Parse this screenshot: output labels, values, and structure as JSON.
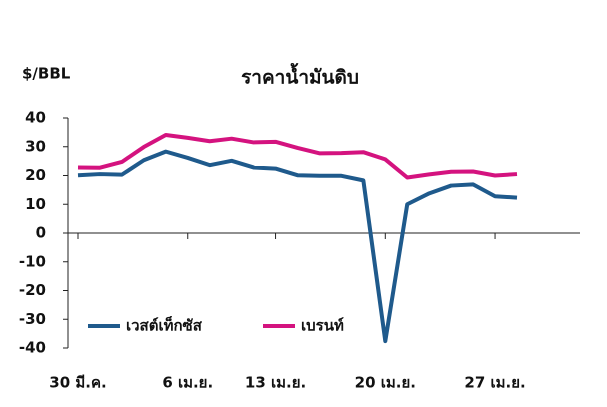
{
  "chart_data": {
    "type": "line",
    "title": "ราคาน้ำมันดิบ",
    "y_label": "$/BBL",
    "categories": [
      "30 มี.ค.",
      null,
      null,
      null,
      null,
      "6 เม.ย.",
      null,
      null,
      null,
      "13 เม.ย.",
      null,
      null,
      null,
      null,
      "20 เม.ย.",
      null,
      null,
      null,
      null,
      "27 เม.ย.",
      null
    ],
    "series": [
      {
        "name": "เวสต์เท็กซัส",
        "color": "#1f5a8c",
        "values": [
          20.1,
          20.5,
          20.3,
          25.3,
          28.3,
          26.1,
          23.6,
          25.1,
          22.8,
          22.4,
          20.1,
          19.9,
          19.9,
          18.3,
          -37.6,
          10.0,
          13.8,
          16.5,
          16.9,
          12.8,
          12.3
        ]
      },
      {
        "name": "เบรนท์",
        "color": "#d4137f",
        "values": [
          22.8,
          22.7,
          24.7,
          29.9,
          34.1,
          33.1,
          31.9,
          32.8,
          31.5,
          31.7,
          29.6,
          27.7,
          27.8,
          28.1,
          25.6,
          19.3,
          20.4,
          21.3,
          21.4,
          20.0,
          20.5
        ]
      }
    ],
    "ylim": [
      -40,
      40
    ],
    "yticks": [
      -40,
      -30,
      -20,
      -10,
      0,
      10,
      20,
      30,
      40
    ],
    "legend": "lower-left"
  }
}
